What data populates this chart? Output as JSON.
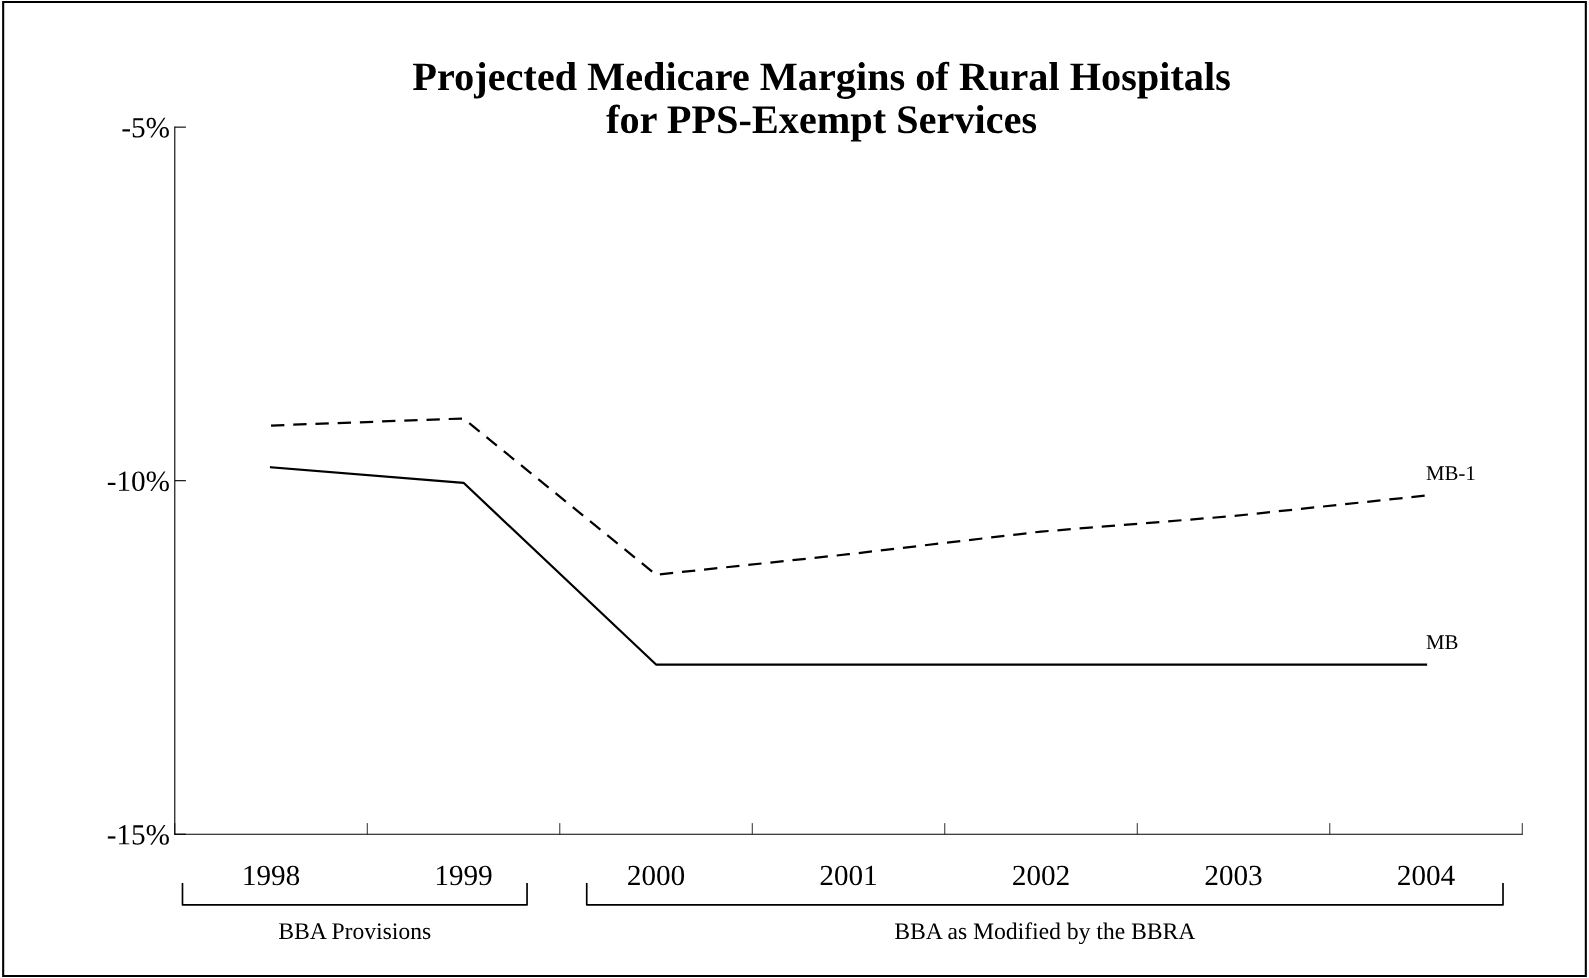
{
  "chart_data": {
    "type": "line",
    "title": "Projected Medicare Margins of Rural Hospitals\nfor PPS-Exempt Services",
    "categories": [
      "1998",
      "1999",
      "2000",
      "2001",
      "2002",
      "2003",
      "2004"
    ],
    "series": [
      {
        "name": "MB-1",
        "color": "#000000",
        "line_style": "dashed",
        "values": [
          -9.22,
          -9.12,
          -11.33,
          -11.04,
          -10.72,
          -10.5,
          -10.21
        ]
      },
      {
        "name": "MB",
        "color": "#000000",
        "line_style": "solid",
        "values": [
          -9.81,
          -10.03,
          -12.6,
          -12.6,
          -12.6,
          -12.6,
          -12.6
        ]
      }
    ],
    "ylim": [
      -15,
      -5
    ],
    "yticks": [
      {
        "value": -15,
        "label": "-15%"
      },
      {
        "value": -10,
        "label": "-10%"
      },
      {
        "value": -5,
        "label": "-5%"
      }
    ],
    "grid": false,
    "legend": false,
    "marker": "none",
    "annotations": [
      "BBA Provisions",
      "BBA as Modified by the BBRA"
    ]
  }
}
